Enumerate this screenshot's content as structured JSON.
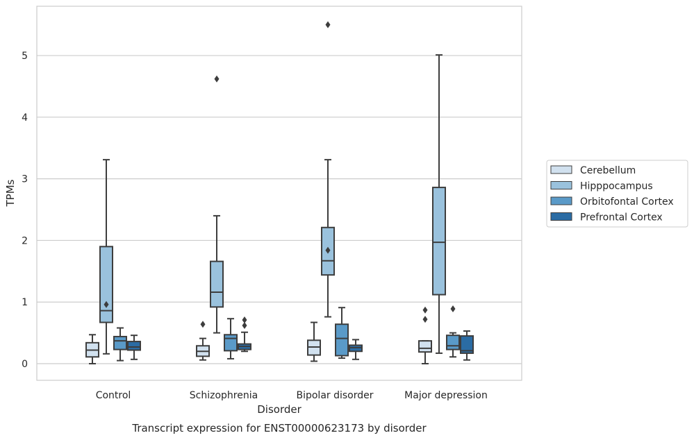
{
  "chart_data": {
    "type": "box",
    "title": "Transcript expression for ENST00000623173 by disorder",
    "xlabel": "Disorder",
    "ylabel": "TPMs",
    "ylim": [
      -0.27,
      5.8
    ],
    "yticks": [
      0,
      1,
      2,
      3,
      4,
      5
    ],
    "grid": true,
    "legend_position": "right",
    "categories": [
      "Control",
      "Schizophrenia",
      "Bipolar disorder",
      "Major depression"
    ],
    "series": [
      {
        "name": "Cerebellum",
        "color": "#d1e1ef",
        "boxes": [
          {
            "whislo": 0.0,
            "q1": 0.11,
            "med": 0.22,
            "q3": 0.34,
            "whishi": 0.47,
            "fliers": []
          },
          {
            "whislo": 0.06,
            "q1": 0.12,
            "med": 0.2,
            "q3": 0.29,
            "whishi": 0.41,
            "fliers": [
              0.64
            ]
          },
          {
            "whislo": 0.04,
            "q1": 0.14,
            "med": 0.27,
            "q3": 0.38,
            "whishi": 0.67,
            "fliers": []
          },
          {
            "whislo": 0.0,
            "q1": 0.19,
            "med": 0.25,
            "q3": 0.37,
            "whishi": 0.37,
            "fliers": [
              0.72,
              0.87
            ]
          }
        ]
      },
      {
        "name": "Hipppocampus",
        "color": "#9ac2dd",
        "boxes": [
          {
            "whislo": 0.16,
            "q1": 0.67,
            "med": 0.86,
            "q3": 1.9,
            "whishi": 3.31,
            "fliers": [
              0.96
            ]
          },
          {
            "whislo": 0.5,
            "q1": 0.92,
            "med": 1.16,
            "q3": 1.66,
            "whishi": 2.4,
            "fliers": [
              4.62
            ]
          },
          {
            "whislo": 0.76,
            "q1": 1.44,
            "med": 1.67,
            "q3": 2.21,
            "whishi": 3.31,
            "fliers": [
              1.84,
              5.5
            ]
          },
          {
            "whislo": 0.17,
            "q1": 1.12,
            "med": 1.97,
            "q3": 2.86,
            "whishi": 5.01,
            "fliers": []
          }
        ]
      },
      {
        "name": "Orbitofontal Cortex",
        "color": "#5a9ac8",
        "boxes": [
          {
            "whislo": 0.05,
            "q1": 0.23,
            "med": 0.37,
            "q3": 0.44,
            "whishi": 0.58,
            "fliers": []
          },
          {
            "whislo": 0.08,
            "q1": 0.21,
            "med": 0.41,
            "q3": 0.47,
            "whishi": 0.73,
            "fliers": []
          },
          {
            "whislo": 0.09,
            "q1": 0.13,
            "med": 0.41,
            "q3": 0.64,
            "whishi": 0.91,
            "fliers": []
          },
          {
            "whislo": 0.11,
            "q1": 0.23,
            "med": 0.29,
            "q3": 0.46,
            "whishi": 0.5,
            "fliers": [
              0.89
            ]
          }
        ]
      },
      {
        "name": "Prefrontal Cortex",
        "color": "#2b6ca4",
        "boxes": [
          {
            "whislo": 0.07,
            "q1": 0.22,
            "med": 0.27,
            "q3": 0.36,
            "whishi": 0.46,
            "fliers": []
          },
          {
            "whislo": 0.2,
            "q1": 0.23,
            "med": 0.28,
            "q3": 0.32,
            "whishi": 0.51,
            "fliers": [
              0.62,
              0.71
            ]
          },
          {
            "whislo": 0.07,
            "q1": 0.2,
            "med": 0.26,
            "q3": 0.3,
            "whishi": 0.39,
            "fliers": []
          },
          {
            "whislo": 0.06,
            "q1": 0.17,
            "med": 0.21,
            "q3": 0.45,
            "whishi": 0.53,
            "fliers": []
          }
        ]
      }
    ]
  }
}
